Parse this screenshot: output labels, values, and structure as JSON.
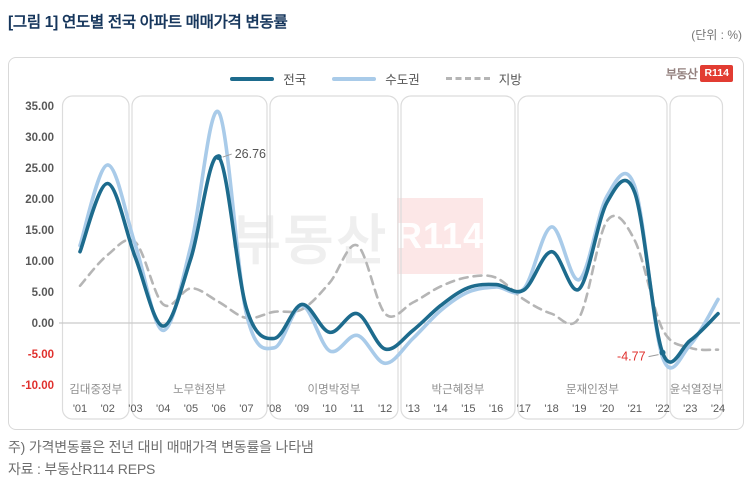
{
  "title": "[그림 1] 연도별 전국 아파트 매매가격 변동률",
  "unit_label": "(단위 : %)",
  "brand_logo": {
    "prefix": "부동산",
    "box": "R114"
  },
  "watermark": {
    "prefix": "부동산",
    "box": "R114"
  },
  "legend": [
    {
      "label": "전국",
      "color": "#1d6b8d",
      "style": "solid"
    },
    {
      "label": "수도권",
      "color": "#a9cbe9",
      "style": "solid"
    },
    {
      "label": "지방",
      "color": "#b5b5b5",
      "style": "dashed"
    }
  ],
  "chart_data": {
    "type": "line",
    "title": "연도별 전국 아파트 매매가격 변동률",
    "ylabel": "%",
    "x": [
      "'01",
      "'02",
      "'03",
      "'04",
      "'05",
      "'06",
      "'07",
      "'08",
      "'09",
      "'10",
      "'11",
      "'12",
      "'13",
      "'14",
      "'15",
      "'16",
      "'17",
      "'18",
      "'19",
      "'20",
      "'21",
      "'22",
      "'23",
      "'24"
    ],
    "yticks": [
      35,
      30,
      25,
      20,
      15,
      10,
      5,
      0,
      -5,
      -10
    ],
    "ylim": [
      -10,
      36.5
    ],
    "grid": "zero-line-only",
    "legend_position": "top-center",
    "series": [
      {
        "name": "전국",
        "color": "#1d6b8d",
        "dash": false,
        "width": 3.6,
        "values": [
          11.5,
          22.5,
          10.5,
          -0.5,
          10.5,
          26.76,
          2.4,
          -2.5,
          3.0,
          -1.5,
          1.5,
          -4.2,
          -1.2,
          2.8,
          5.7,
          6.2,
          5.3,
          11.5,
          5.5,
          19.5,
          21.0,
          -4.77,
          -2.8,
          1.5
        ]
      },
      {
        "name": "수도권",
        "color": "#a9cbe9",
        "dash": false,
        "width": 3.6,
        "values": [
          12.5,
          25.5,
          12.5,
          -1.2,
          12.5,
          34.0,
          1.5,
          -4.0,
          2.8,
          -4.5,
          -2.0,
          -6.5,
          -2.5,
          2.0,
          5.0,
          5.8,
          5.5,
          15.5,
          7.0,
          20.5,
          22.0,
          -5.5,
          -3.5,
          3.8
        ]
      },
      {
        "name": "지방",
        "color": "#b5b5b5",
        "dash": true,
        "width": 2.6,
        "values": [
          6.0,
          11.0,
          13.0,
          3.0,
          5.6,
          3.4,
          0.8,
          1.8,
          2.2,
          6.5,
          12.5,
          1.5,
          3.3,
          5.9,
          7.4,
          7.3,
          3.8,
          1.5,
          0.9,
          16.5,
          13.3,
          -1.0,
          -4.0,
          -4.3
        ]
      }
    ],
    "annotations": [
      {
        "label": "26.76",
        "series": "전국",
        "year_index": 5,
        "value": 26.76,
        "side": "right",
        "color": "#555555"
      },
      {
        "label": "-4.77",
        "series": "전국",
        "year_index": 21,
        "value": -4.77,
        "side": "left",
        "color": "#e0312e"
      }
    ],
    "governments": [
      {
        "label": "김대중정부",
        "from": 0,
        "to": 1
      },
      {
        "label": "노무현정부",
        "from": 2,
        "to": 6
      },
      {
        "label": "이명박정부",
        "from": 7,
        "to": 11
      },
      {
        "label": "박근혜정부",
        "from": 12,
        "to": 15
      },
      {
        "label": "문재인정부",
        "from": 16,
        "to": 21
      },
      {
        "label": "윤석열정부",
        "from": 22,
        "to": 23
      }
    ]
  },
  "colors": {
    "negative_tick": "#e0312e",
    "tick": "#595959",
    "gov_label": "#8f8f8f",
    "box_border": "#dcdcdc",
    "zero_line": "#c9c9c9",
    "leader_line": "#9a9a9a"
  },
  "notes": [
    "주) 가격변동률은 전년 대비 매매가격 변동률을 나타냄",
    "자료 : 부동산R114 REPS"
  ]
}
